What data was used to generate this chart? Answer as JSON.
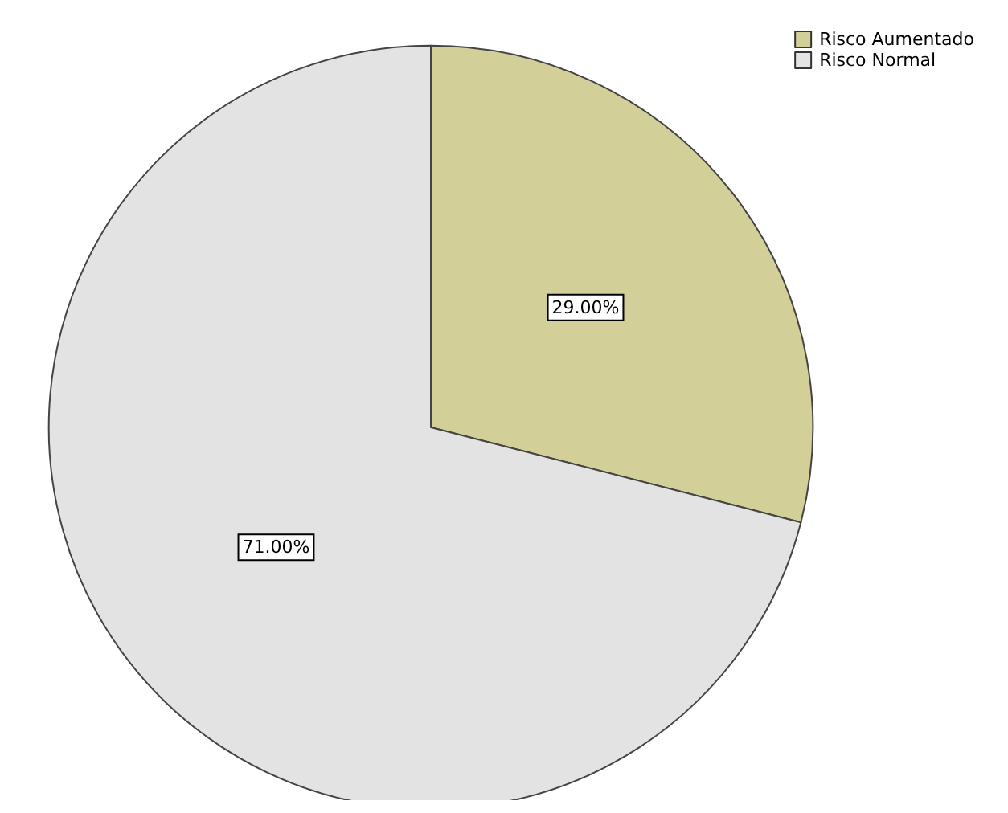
{
  "chart_data": {
    "type": "pie",
    "categories": [
      "Risco Aumentado",
      "Risco Normal"
    ],
    "values": [
      29,
      71
    ],
    "colors": [
      "#d3cf98",
      "#e3e3e3"
    ],
    "value_labels": [
      "29.00%",
      "71.00%"
    ],
    "legend": "top right"
  }
}
